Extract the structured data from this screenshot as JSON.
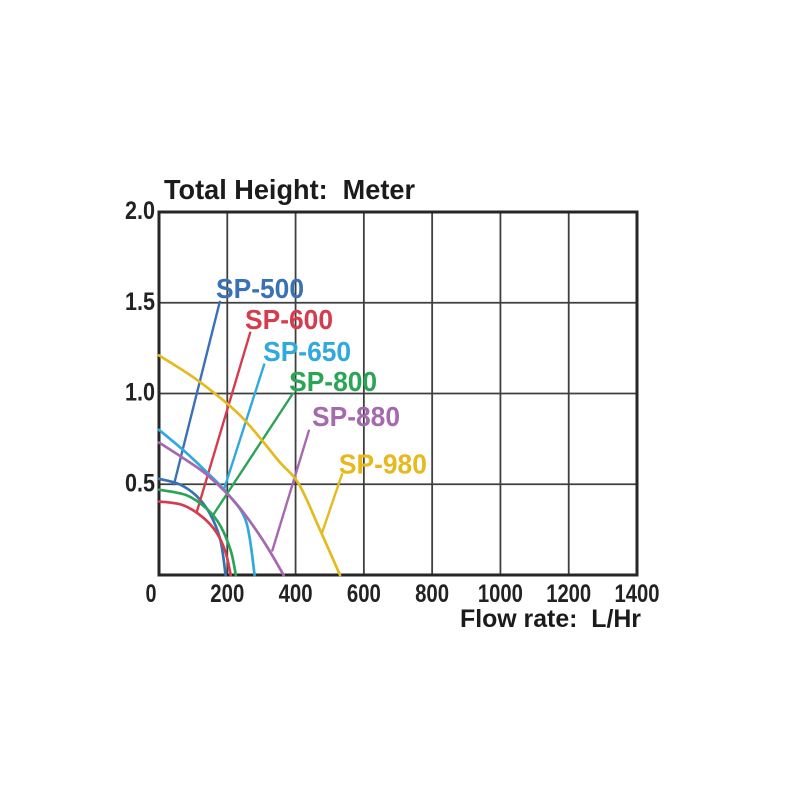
{
  "page": {
    "background": "#ffffff"
  },
  "chart_data": {
    "type": "line",
    "title": "Total Height:  Meter",
    "xlabel": "Flow rate:  L/Hr",
    "ylabel": "Total Height: Meter",
    "x_unit": "L/Hr",
    "y_unit": "Meter",
    "xlim": [
      0,
      1400
    ],
    "ylim": [
      0,
      2.0
    ],
    "grid": true,
    "grid_color": "#3f3f3f",
    "axis_color": "#262626",
    "text_color": "#1b1b1b",
    "x_ticks": [
      {
        "label": "0",
        "value": 0
      },
      {
        "label": "200",
        "value": 200
      },
      {
        "label": "400",
        "value": 400
      },
      {
        "label": "600",
        "value": 600
      },
      {
        "label": "800",
        "value": 800
      },
      {
        "label": "1000",
        "value": 1000
      },
      {
        "label": "1200",
        "value": 1200
      },
      {
        "label": "1400",
        "value": 1400
      }
    ],
    "y_ticks": [
      {
        "label": "2.0",
        "value": 2.0
      },
      {
        "label": "1.5",
        "value": 1.5
      },
      {
        "label": "1.0",
        "value": 1.0
      },
      {
        "label": "0.5",
        "value": 0.5
      }
    ],
    "series": [
      {
        "name": "SP-500",
        "color": "#3a71b5",
        "max_head_m": 0.53,
        "max_flow_lhr": 195,
        "points": [
          [
            0,
            0.53
          ],
          [
            60,
            0.5
          ],
          [
            110,
            0.435
          ],
          [
            150,
            0.335
          ],
          [
            180,
            0.19
          ],
          [
            195,
            0
          ]
        ],
        "label_anchor": {
          "flow": 167,
          "head": 1.525
        },
        "leader": [
          [
            178,
            1.505
          ],
          [
            44,
            0.5
          ]
        ]
      },
      {
        "name": "SP-600",
        "color": "#d53c4d",
        "max_head_m": 0.41,
        "max_flow_lhr": 210,
        "points": [
          [
            0,
            0.405
          ],
          [
            70,
            0.385
          ],
          [
            130,
            0.315
          ],
          [
            170,
            0.23
          ],
          [
            195,
            0.125
          ],
          [
            210,
            0
          ]
        ],
        "label_anchor": {
          "flow": 252,
          "head": 1.355
        },
        "leader": [
          [
            267,
            1.335
          ],
          [
            111,
            0.35
          ]
        ]
      },
      {
        "name": "SP-650",
        "color": "#30a9df",
        "max_head_m": 0.8,
        "max_flow_lhr": 280,
        "points": [
          [
            0,
            0.8
          ],
          [
            70,
            0.69
          ],
          [
            135,
            0.575
          ],
          [
            200,
            0.45
          ],
          [
            255,
            0.295
          ],
          [
            280,
            0
          ]
        ],
        "label_anchor": {
          "flow": 305,
          "head": 1.18
        },
        "leader": [
          [
            308,
            1.16
          ],
          [
            190,
            0.47
          ]
        ]
      },
      {
        "name": "SP-800",
        "color": "#2aa455",
        "max_head_m": 0.47,
        "max_flow_lhr": 225,
        "points": [
          [
            0,
            0.47
          ],
          [
            80,
            0.44
          ],
          [
            140,
            0.365
          ],
          [
            180,
            0.27
          ],
          [
            210,
            0.135
          ],
          [
            225,
            0
          ]
        ],
        "label_anchor": {
          "flow": 381,
          "head": 1.015
        },
        "leader": [
          [
            392,
            1.0
          ],
          [
            160,
            0.335
          ]
        ]
      },
      {
        "name": "SP-880",
        "color": "#a668af",
        "max_head_m": 0.73,
        "max_flow_lhr": 365,
        "points": [
          [
            0,
            0.73
          ],
          [
            70,
            0.645
          ],
          [
            145,
            0.545
          ],
          [
            230,
            0.385
          ],
          [
            305,
            0.19
          ],
          [
            365,
            0
          ]
        ],
        "label_anchor": {
          "flow": 448,
          "head": 0.82
        },
        "leader": [
          [
            439,
            0.795
          ],
          [
            332,
            0.135
          ]
        ]
      },
      {
        "name": "SP-980",
        "color": "#e6b91e",
        "max_head_m": 1.21,
        "max_flow_lhr": 530,
        "points": [
          [
            0,
            1.21
          ],
          [
            115,
            1.07
          ],
          [
            240,
            0.875
          ],
          [
            350,
            0.63
          ],
          [
            410,
            0.5
          ],
          [
            470,
            0.255
          ],
          [
            530,
            0
          ]
        ],
        "label_anchor": {
          "flow": 527,
          "head": 0.56
        },
        "leader": [
          [
            536,
            0.555
          ],
          [
            478,
            0.235
          ]
        ]
      }
    ]
  }
}
